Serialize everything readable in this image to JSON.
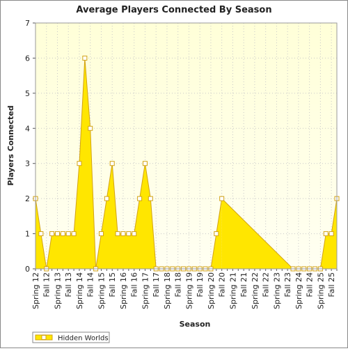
{
  "chart_data": {
    "type": "area",
    "title": "Average Players Connected By Season",
    "x_label": "Season",
    "y_label": "Players Connected",
    "categories": [
      "Spring 12",
      null,
      "Fall 12",
      null,
      "Spring 13",
      null,
      "Fall 13",
      null,
      "Spring 14",
      null,
      "Fall 14",
      null,
      "Spring 15",
      null,
      "Fall 15",
      null,
      "Spring 16",
      null,
      "Fall 16",
      null,
      "Spring 17",
      null,
      "Fall 17",
      null,
      "Spring 18",
      null,
      "Fall 18",
      null,
      "Spring 19",
      null,
      "Fall 19",
      null,
      "Spring 20",
      null,
      "Fall 20",
      null,
      "Spring 21",
      null,
      "Fall 21",
      null,
      "Spring 22",
      null,
      "Fall 22",
      null,
      "Spring 23",
      null,
      "Fall 23",
      null,
      "Spring 24",
      null,
      "Fall 24",
      null,
      "Spring 25",
      null,
      "Fall 25",
      null
    ],
    "series": [
      {
        "name": "Hidden Worlds",
        "color": "#ffe600",
        "line_color": "#d2a214",
        "values": [
          2,
          1,
          0,
          1,
          1,
          1,
          1,
          1,
          3,
          6,
          4,
          0,
          1,
          2,
          3,
          1,
          1,
          1,
          1,
          2,
          3,
          2,
          0,
          0,
          0,
          0,
          0,
          0,
          0,
          0,
          0,
          0,
          0,
          1,
          2,
          null,
          null,
          null,
          null,
          null,
          null,
          null,
          null,
          null,
          null,
          null,
          null,
          0,
          0,
          0,
          0,
          0,
          0,
          1,
          1,
          2
        ]
      }
    ],
    "ylim": [
      0,
      7
    ],
    "yticks": [
      0,
      1,
      2,
      3,
      4,
      5,
      6,
      7
    ],
    "grid": true,
    "legend": "bottom-left"
  }
}
